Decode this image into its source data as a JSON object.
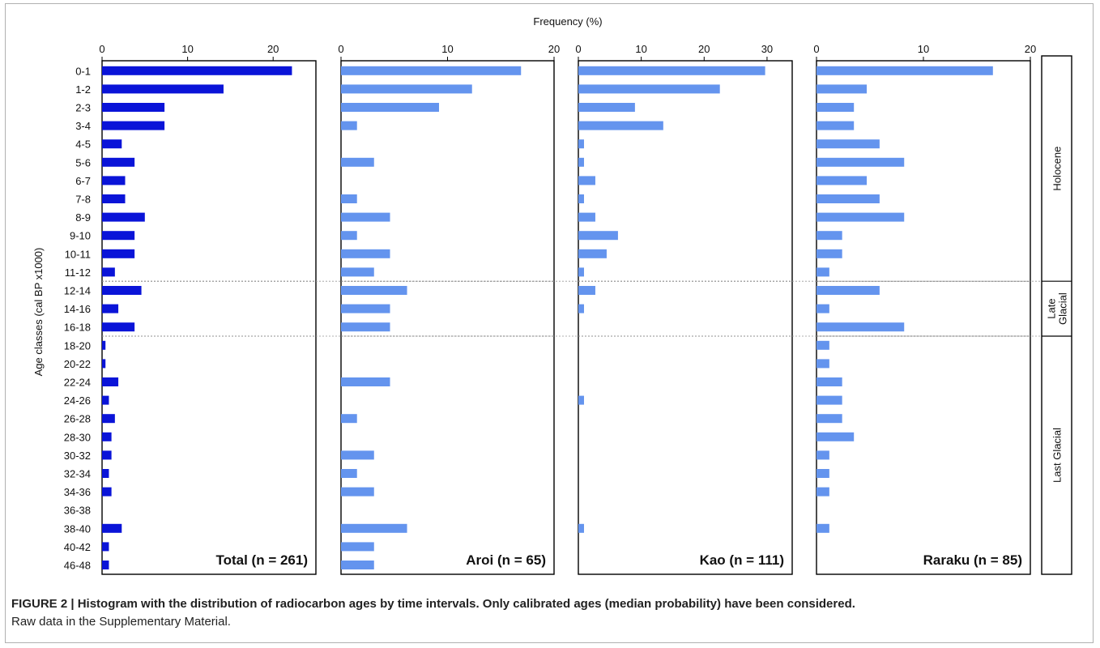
{
  "figure": {
    "caption_title": "FIGURE 2 | Histogram with the distribution of radiocarbon ages by time intervals. Only calibrated ages (median probability) have been considered.",
    "caption_note": "Raw data in the Supplementary Material."
  },
  "chart_data": {
    "type": "bar",
    "orientation": "horizontal",
    "title": "",
    "xlabel": "Frequency (%)",
    "ylabel": "Age classes (cal BP x1000)",
    "categories": [
      "0-1",
      "1-2",
      "2-3",
      "3-4",
      "4-5",
      "5-6",
      "6-7",
      "7-8",
      "8-9",
      "9-10",
      "10-11",
      "11-12",
      "12-14",
      "14-16",
      "16-18",
      "18-20",
      "20-22",
      "22-24",
      "24-26",
      "26-28",
      "28-30",
      "30-32",
      "32-34",
      "34-36",
      "36-38",
      "38-40",
      "40-42",
      "46-48"
    ],
    "period_labels": [
      {
        "text": "Holocene",
        "from": 0,
        "to": 11
      },
      {
        "text": "Late Glacial",
        "from": 12,
        "to": 14
      },
      {
        "text": "Last Glacial",
        "from": 15,
        "to": 27
      }
    ],
    "period_dividers_after_index": [
      11,
      14
    ],
    "grid": false,
    "panels": [
      {
        "name": "Total (n = 261)",
        "color": "#0a14d8",
        "xlim": [
          0,
          25
        ],
        "xticks": [
          0,
          10,
          20
        ],
        "values": [
          22.2,
          14.2,
          7.3,
          7.3,
          2.3,
          3.8,
          2.7,
          2.7,
          5.0,
          3.8,
          3.8,
          1.5,
          4.6,
          1.9,
          3.8,
          0.4,
          0.4,
          1.9,
          0.8,
          1.5,
          1.1,
          1.1,
          0.8,
          1.1,
          0.0,
          2.3,
          0.8,
          0.8
        ]
      },
      {
        "name": "Aroi (n = 65)",
        "color": "#6494ee",
        "xlim": [
          0,
          20
        ],
        "xticks": [
          0,
          10,
          20
        ],
        "values": [
          16.9,
          12.3,
          9.2,
          1.5,
          0.0,
          3.1,
          0.0,
          1.5,
          4.6,
          1.5,
          4.6,
          3.1,
          6.2,
          4.6,
          4.6,
          0.0,
          0.0,
          4.6,
          0.0,
          1.5,
          0.0,
          3.1,
          1.5,
          3.1,
          0.0,
          6.2,
          3.1,
          3.1
        ]
      },
      {
        "name": "Kao (n = 111)",
        "color": "#6494ee",
        "xlim": [
          0,
          34
        ],
        "xticks": [
          0,
          10,
          20,
          30
        ],
        "values": [
          29.7,
          22.5,
          9.0,
          13.5,
          0.9,
          0.9,
          2.7,
          0.9,
          2.7,
          6.3,
          4.5,
          0.9,
          2.7,
          0.9,
          0.0,
          0.0,
          0.0,
          0.0,
          0.9,
          0.0,
          0.0,
          0.0,
          0.0,
          0.0,
          0.0,
          0.9,
          0.0,
          0.0
        ]
      },
      {
        "name": "Raraku (n = 85)",
        "color": "#6494ee",
        "xlim": [
          0,
          20
        ],
        "xticks": [
          0,
          10,
          20
        ],
        "values": [
          16.5,
          4.7,
          3.5,
          3.5,
          5.9,
          8.2,
          4.7,
          5.9,
          8.2,
          2.4,
          2.4,
          1.2,
          5.9,
          1.2,
          8.2,
          1.2,
          1.2,
          2.4,
          2.4,
          2.4,
          3.5,
          1.2,
          1.2,
          1.2,
          0.0,
          1.2,
          0.0,
          0.0
        ]
      }
    ]
  }
}
